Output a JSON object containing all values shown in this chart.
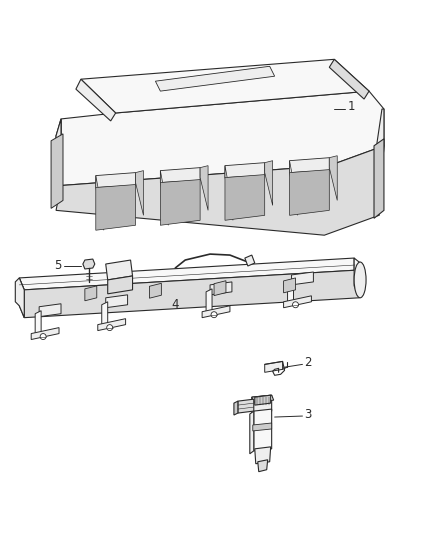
{
  "bg_color": "#ffffff",
  "line_color": "#2a2a2a",
  "line_width": 0.8,
  "label_color": "#2a2a2a",
  "label_fontsize": 8.5,
  "figsize": [
    4.38,
    5.33
  ],
  "dpi": 100,
  "face_light": "#f8f8f8",
  "face_mid": "#eeeeee",
  "face_dark": "#dddddd",
  "face_darker": "#cccccc"
}
